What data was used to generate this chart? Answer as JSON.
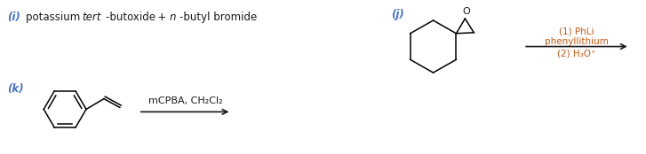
{
  "bg_color": "#ffffff",
  "text_color_label": "#4472c4",
  "text_color_reagent": "#c55a11",
  "text_color_black": "#1a1a1a",
  "figsize": [
    7.27,
    1.74
  ],
  "dpi": 100,
  "label_i": "(i)",
  "label_j": "(j)",
  "label_k": "(k)",
  "reagent_j_line1": "(1) PhLi",
  "reagent_j_line2": "phenyllithium",
  "reagent_j_line3": "(2) H₃O⁺",
  "reagent_k": "mCPBA, CH₂Cl₂"
}
